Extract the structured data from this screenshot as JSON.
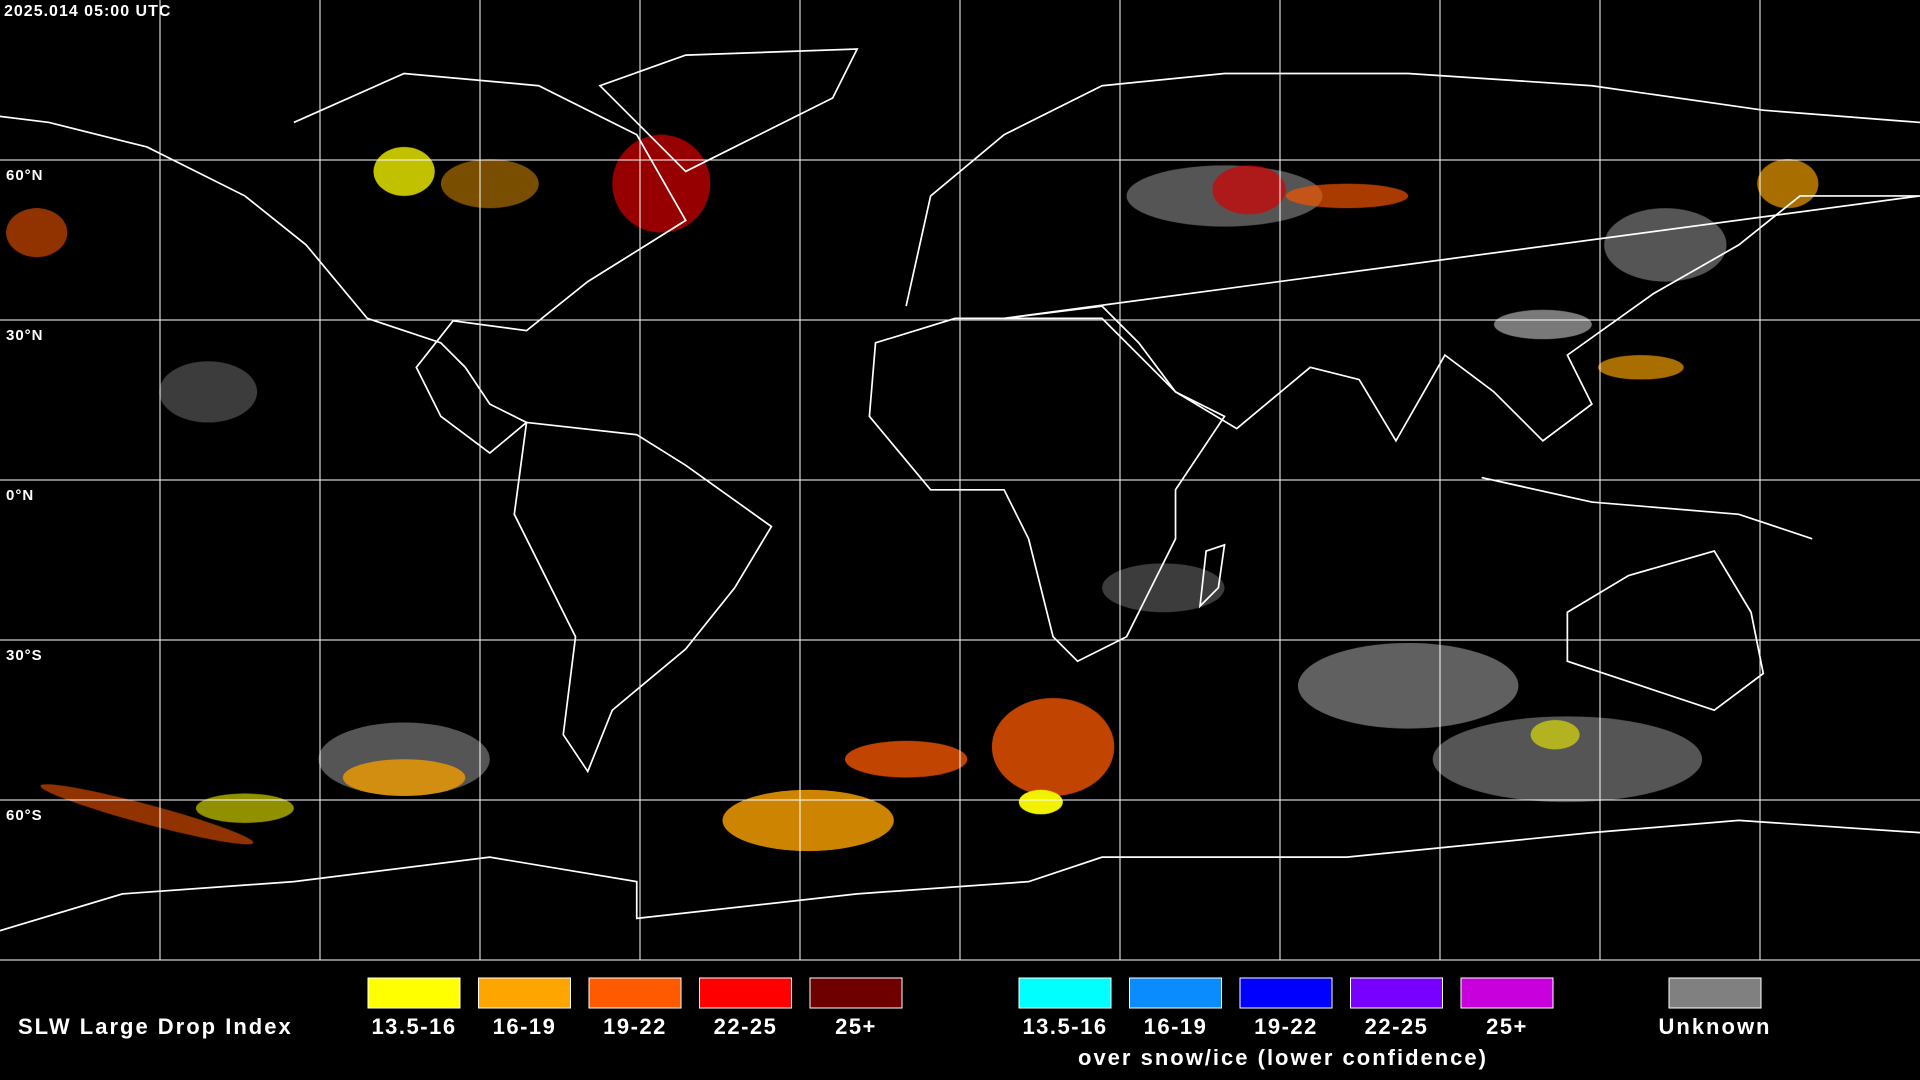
{
  "header": {
    "timestamp": "2025.014 05:00 UTC"
  },
  "map": {
    "latitude_labels": [
      "60°N",
      "30°N",
      "0°N",
      "30°S",
      "60°S"
    ]
  },
  "legend": {
    "title": "SLW Large Drop Index",
    "groups": [
      {
        "items": [
          {
            "label": "13.5-16",
            "color": "#ffff00"
          },
          {
            "label": "16-19",
            "color": "#ffa500"
          },
          {
            "label": "19-22",
            "color": "#ff5a00"
          },
          {
            "label": "22-25",
            "color": "#ff0000"
          },
          {
            "label": "25+",
            "color": "#6e0000"
          }
        ]
      },
      {
        "items": [
          {
            "label": "13.5-16",
            "color": "#00ffff"
          },
          {
            "label": "16-19",
            "color": "#0a8cff"
          },
          {
            "label": "19-22",
            "color": "#0000ff"
          },
          {
            "label": "22-25",
            "color": "#7800ff"
          },
          {
            "label": "25+",
            "color": "#c800dc"
          }
        ],
        "caption": "over snow/ice (lower confidence)"
      }
    ],
    "unknown": {
      "label": "Unknown",
      "color": "#808080"
    }
  }
}
